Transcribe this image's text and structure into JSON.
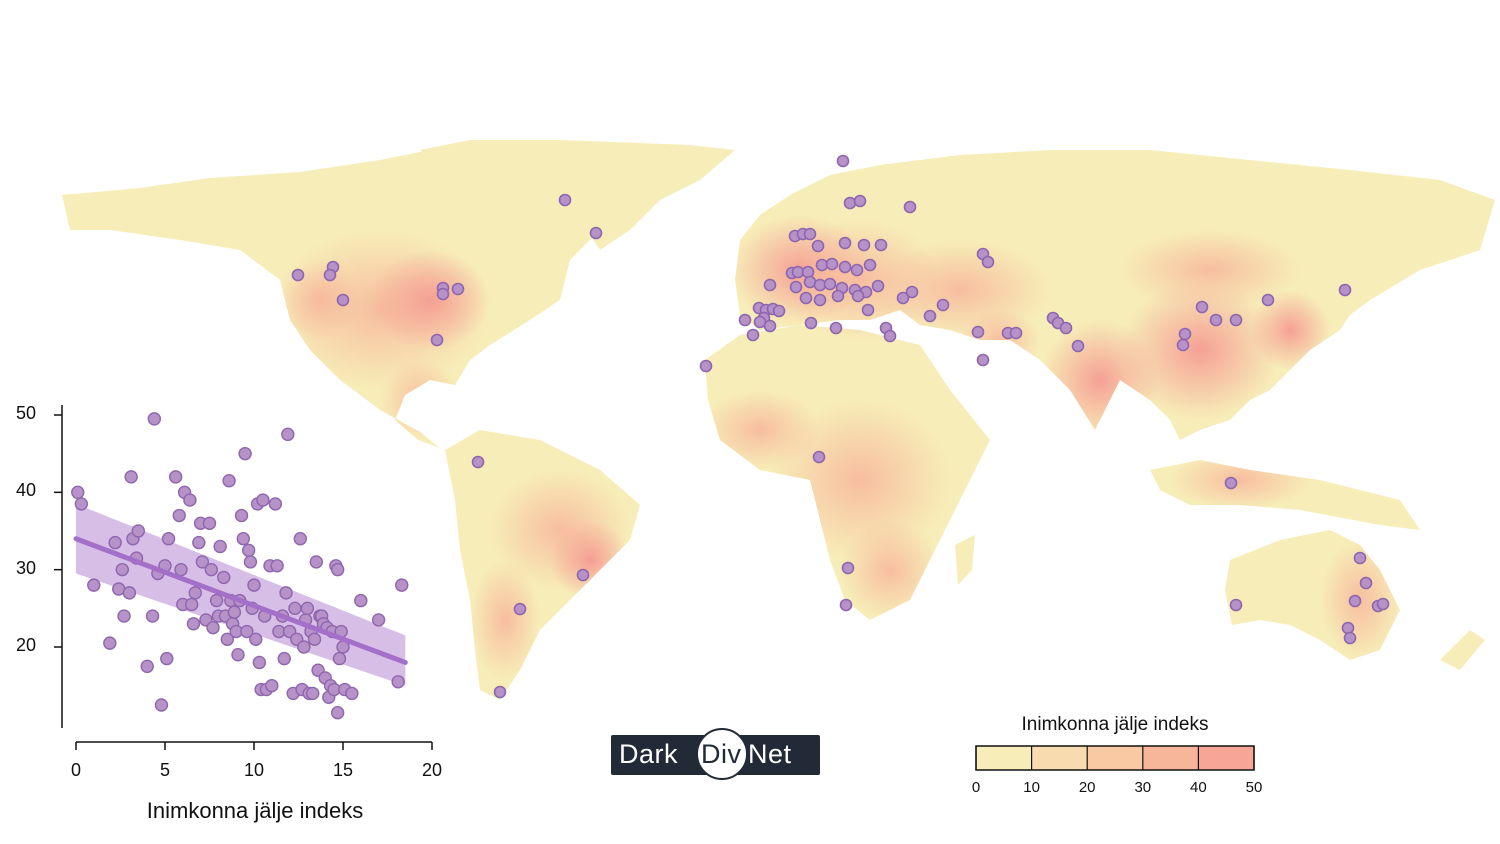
{
  "map": {
    "land_colors": {
      "low": "#f7edb8",
      "mid": "#f8c9a2",
      "high": "#f59c93"
    },
    "site_color": "#b692c8",
    "site_stroke": "#8e66ad"
  },
  "legend": {
    "title": "Inimkonna jälje indeks",
    "ticks": [
      "0",
      "10",
      "20",
      "30",
      "40",
      "50"
    ],
    "colors": [
      "#f7edb8",
      "#f8dcb0",
      "#f8c9a2",
      "#f7b59a",
      "#f6a597"
    ]
  },
  "logo": {
    "part1": "Dark",
    "part2": "Div",
    "part3": "Net",
    "bg": "#222a38"
  },
  "chart_data": {
    "type": "scatter",
    "xlabel": "Inimkonna jälje indeks",
    "ylabel": "",
    "xlim": [
      0,
      20
    ],
    "ylim": [
      13,
      50
    ],
    "xticks": [
      0,
      5,
      10,
      15,
      20
    ],
    "yticks": [
      20,
      30,
      40,
      50
    ],
    "point_color": "#b692c8",
    "fit_color": "#a46fc8",
    "fit": {
      "x": [
        0,
        18.5
      ],
      "y": [
        34,
        18
      ],
      "ci_lower_start": 29.5,
      "ci_upper_start": 38.5,
      "ci_lower_end": 15,
      "ci_upper_end": 21.5
    },
    "points": [
      [
        0.1,
        40
      ],
      [
        0.3,
        38.5
      ],
      [
        1,
        28
      ],
      [
        1.9,
        20.5
      ],
      [
        2.2,
        33.5
      ],
      [
        2.4,
        27.5
      ],
      [
        2.6,
        30
      ],
      [
        2.7,
        24
      ],
      [
        3,
        27
      ],
      [
        3.1,
        42
      ],
      [
        3.2,
        34
      ],
      [
        3.4,
        31.5
      ],
      [
        3.5,
        35
      ],
      [
        4,
        17.5
      ],
      [
        4.3,
        24
      ],
      [
        4.4,
        49.5
      ],
      [
        4.6,
        29.5
      ],
      [
        4.8,
        12.5
      ],
      [
        5,
        30.5
      ],
      [
        5.1,
        18.5
      ],
      [
        5.2,
        34
      ],
      [
        5.6,
        42
      ],
      [
        5.8,
        37
      ],
      [
        5.9,
        30
      ],
      [
        6,
        25.5
      ],
      [
        6.1,
        40
      ],
      [
        6.4,
        39
      ],
      [
        6.5,
        25.5
      ],
      [
        6.6,
        23
      ],
      [
        6.7,
        27
      ],
      [
        6.9,
        33.5
      ],
      [
        7,
        36
      ],
      [
        7.1,
        31
      ],
      [
        7.3,
        23.5
      ],
      [
        7.5,
        36
      ],
      [
        7.6,
        30
      ],
      [
        7.7,
        22.5
      ],
      [
        8,
        24
      ],
      [
        8.1,
        33
      ],
      [
        8.3,
        29
      ],
      [
        8.4,
        24
      ],
      [
        8.5,
        21
      ],
      [
        8.6,
        41.5
      ],
      [
        8.7,
        26
      ],
      [
        8.8,
        23
      ],
      [
        9,
        22
      ],
      [
        9.1,
        19
      ],
      [
        9.2,
        26
      ],
      [
        9.3,
        37
      ],
      [
        9.4,
        34
      ],
      [
        9.5,
        45
      ],
      [
        9.6,
        22
      ],
      [
        9.7,
        32.5
      ],
      [
        9.8,
        31
      ],
      [
        9.9,
        25
      ],
      [
        10,
        28
      ],
      [
        10.1,
        21
      ],
      [
        10.2,
        38.5
      ],
      [
        10.3,
        18
      ],
      [
        10.4,
        14.5
      ],
      [
        10.5,
        39
      ],
      [
        10.6,
        24
      ],
      [
        10.7,
        14.5
      ],
      [
        10.9,
        30.5
      ],
      [
        11,
        15
      ],
      [
        11.2,
        38.5
      ],
      [
        11.3,
        30.5
      ],
      [
        11.4,
        22
      ],
      [
        11.6,
        24
      ],
      [
        11.7,
        18.5
      ],
      [
        11.8,
        27
      ],
      [
        11.9,
        47.5
      ],
      [
        12,
        22
      ],
      [
        12.2,
        14
      ],
      [
        12.4,
        21
      ],
      [
        12.6,
        34
      ],
      [
        12.7,
        14.5
      ],
      [
        12.8,
        20
      ],
      [
        12.9,
        23.5
      ],
      [
        13,
        25
      ],
      [
        13.1,
        14
      ],
      [
        13.2,
        22
      ],
      [
        13.4,
        21
      ],
      [
        13.5,
        31
      ],
      [
        13.6,
        17
      ],
      [
        13.7,
        24
      ],
      [
        13.8,
        24
      ],
      [
        13.9,
        23
      ],
      [
        14,
        16
      ],
      [
        14.1,
        22.5
      ],
      [
        14.2,
        13.5
      ],
      [
        14.3,
        15
      ],
      [
        14.4,
        22
      ],
      [
        14.5,
        14.5
      ],
      [
        14.6,
        30.5
      ],
      [
        14.7,
        30
      ],
      [
        14.8,
        18.5
      ],
      [
        14.9,
        22
      ],
      [
        15,
        20
      ],
      [
        15.1,
        14.5
      ],
      [
        15.5,
        14
      ],
      [
        16,
        26
      ],
      [
        17,
        23.5
      ],
      [
        18.1,
        15.5
      ],
      [
        18.3,
        28
      ],
      [
        14.7,
        11.5
      ],
      [
        13.3,
        14
      ],
      [
        8.9,
        24.5
      ],
      [
        7.9,
        26
      ],
      [
        12.3,
        25
      ]
    ]
  }
}
